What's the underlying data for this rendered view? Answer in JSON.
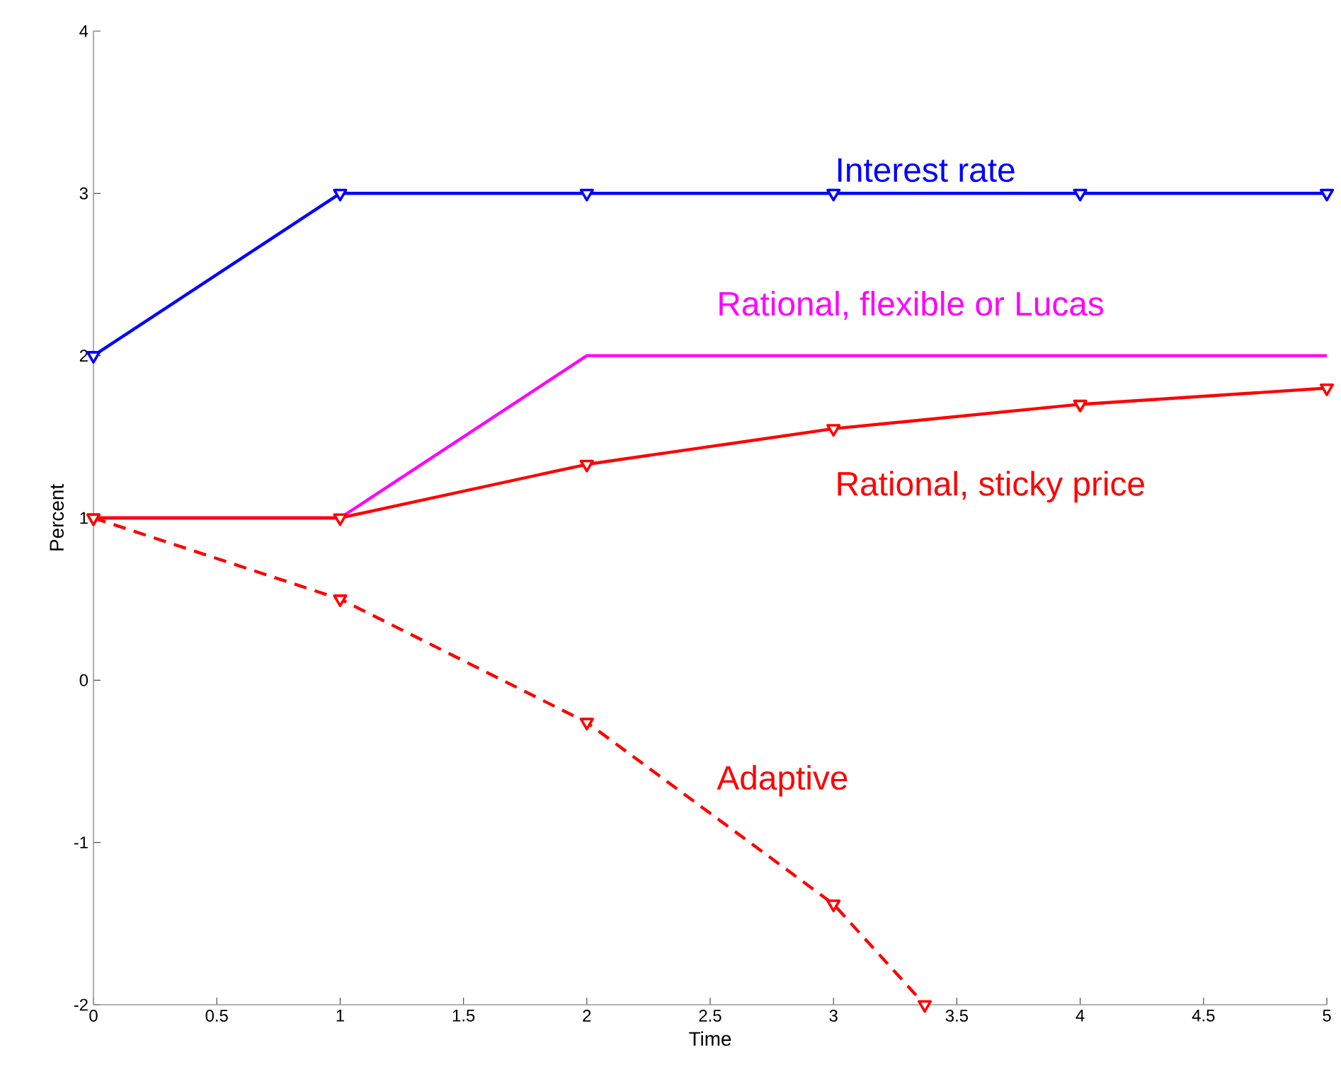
{
  "chart_data": {
    "type": "line",
    "xlabel": "Time",
    "ylabel": "Percent",
    "xlim": [
      0,
      5
    ],
    "ylim": [
      -2,
      4
    ],
    "xticks": [
      0,
      0.5,
      1,
      1.5,
      2,
      2.5,
      3,
      3.5,
      4,
      4.5,
      5
    ],
    "yticks": [
      -2,
      -1,
      0,
      1,
      2,
      3,
      4
    ],
    "grid": false,
    "legend": false,
    "series": [
      {
        "name": "Interest rate",
        "color": "#0000ff",
        "x": [
          0,
          1,
          2,
          3,
          4,
          5
        ],
        "values": [
          2,
          3,
          3,
          3,
          3,
          3
        ],
        "marker": "triangle",
        "line_style": "solid"
      },
      {
        "name": "Rational, flexible or Lucas",
        "color": "#ff00ff",
        "x": [
          0,
          1,
          2,
          3,
          4,
          5
        ],
        "values": [
          1,
          1,
          2,
          2,
          2,
          2
        ],
        "marker": "none",
        "line_style": "solid"
      },
      {
        "name": "Rational, sticky price",
        "color": "#ff0000",
        "x": [
          0,
          1,
          2,
          3,
          4,
          5
        ],
        "values": [
          1,
          1,
          1.33,
          1.55,
          1.7,
          1.8
        ],
        "marker": "triangle",
        "line_style": "solid"
      },
      {
        "name": "Adaptive",
        "color": "#ff0000",
        "x": [
          0,
          1,
          2,
          3,
          3.37
        ],
        "values": [
          1,
          0.5,
          -0.26,
          -1.38,
          -2
        ],
        "marker": "triangle",
        "line_style": "dashed"
      }
    ]
  }
}
